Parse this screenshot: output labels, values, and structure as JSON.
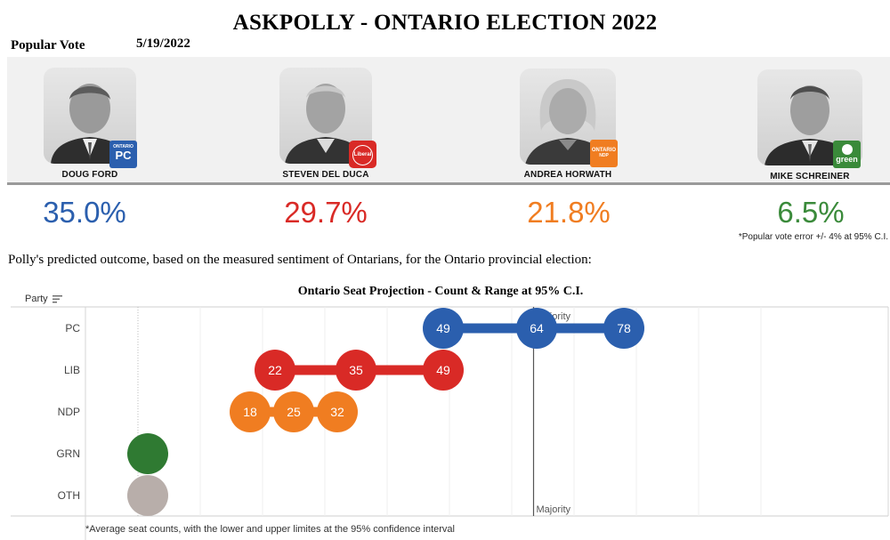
{
  "header": {
    "title": "ASKPOLLY - ONTARIO ELECTION 2022",
    "popular_vote_label": "Popular Vote",
    "date": "5/19/2022"
  },
  "candidates": [
    {
      "name": "DOUG FORD",
      "party_badge": "PC",
      "badge_small": "ONTARIO",
      "percent": "35.0%",
      "color": "#2b5fae"
    },
    {
      "name": "STEVEN DEL DUCA",
      "party_badge": "Liberal",
      "badge_small": "",
      "percent": "29.7%",
      "color": "#d92a26"
    },
    {
      "name": "ANDREA HORWATH",
      "party_badge": "ONTARIO",
      "badge_small": "NDP",
      "percent": "21.8%",
      "color": "#f07d21"
    },
    {
      "name": "MIKE SCHREINER",
      "party_badge": "green",
      "badge_small": "",
      "percent": "6.5%",
      "color": "#3a8a3a"
    }
  ],
  "popular_vote_note": "*Popular vote error +/- 4% at 95% C.I.",
  "outcome_text": "Polly's predicted outcome, based on the measured sentiment of Ontarians, for the Ontario provincial election:",
  "party_header": "Party",
  "footnote": "*Average seat counts, with the lower and upper limites at the 95% confidence interval",
  "chart_data": {
    "type": "scatter",
    "title": "Ontario Seat Projection - Count & Range at 95% C.I.",
    "xlim": [
      0,
      100
    ],
    "majority_value": 63.5,
    "majority_label": "Majority",
    "grid": true,
    "series": [
      {
        "name": "PC",
        "low": 49,
        "mean": 64,
        "high": 78,
        "labels": [
          "49",
          "64",
          "78"
        ],
        "color": "#2b5fae"
      },
      {
        "name": "LIB",
        "low": 22,
        "mean": 35,
        "high": 49,
        "labels": [
          "22",
          "35",
          "49"
        ],
        "color": "#d92a26"
      },
      {
        "name": "NDP",
        "low": 18,
        "mean": 25,
        "high": 32,
        "labels": [
          "18",
          "25",
          "32"
        ],
        "color": "#f07d21"
      },
      {
        "name": "GRN",
        "low": 0,
        "mean": 0,
        "high": 0,
        "labels": [],
        "color": "#2f7a32"
      },
      {
        "name": "OTH",
        "low": 0,
        "mean": 0,
        "high": 0,
        "labels": [],
        "color": "#b8aeaa"
      }
    ]
  }
}
